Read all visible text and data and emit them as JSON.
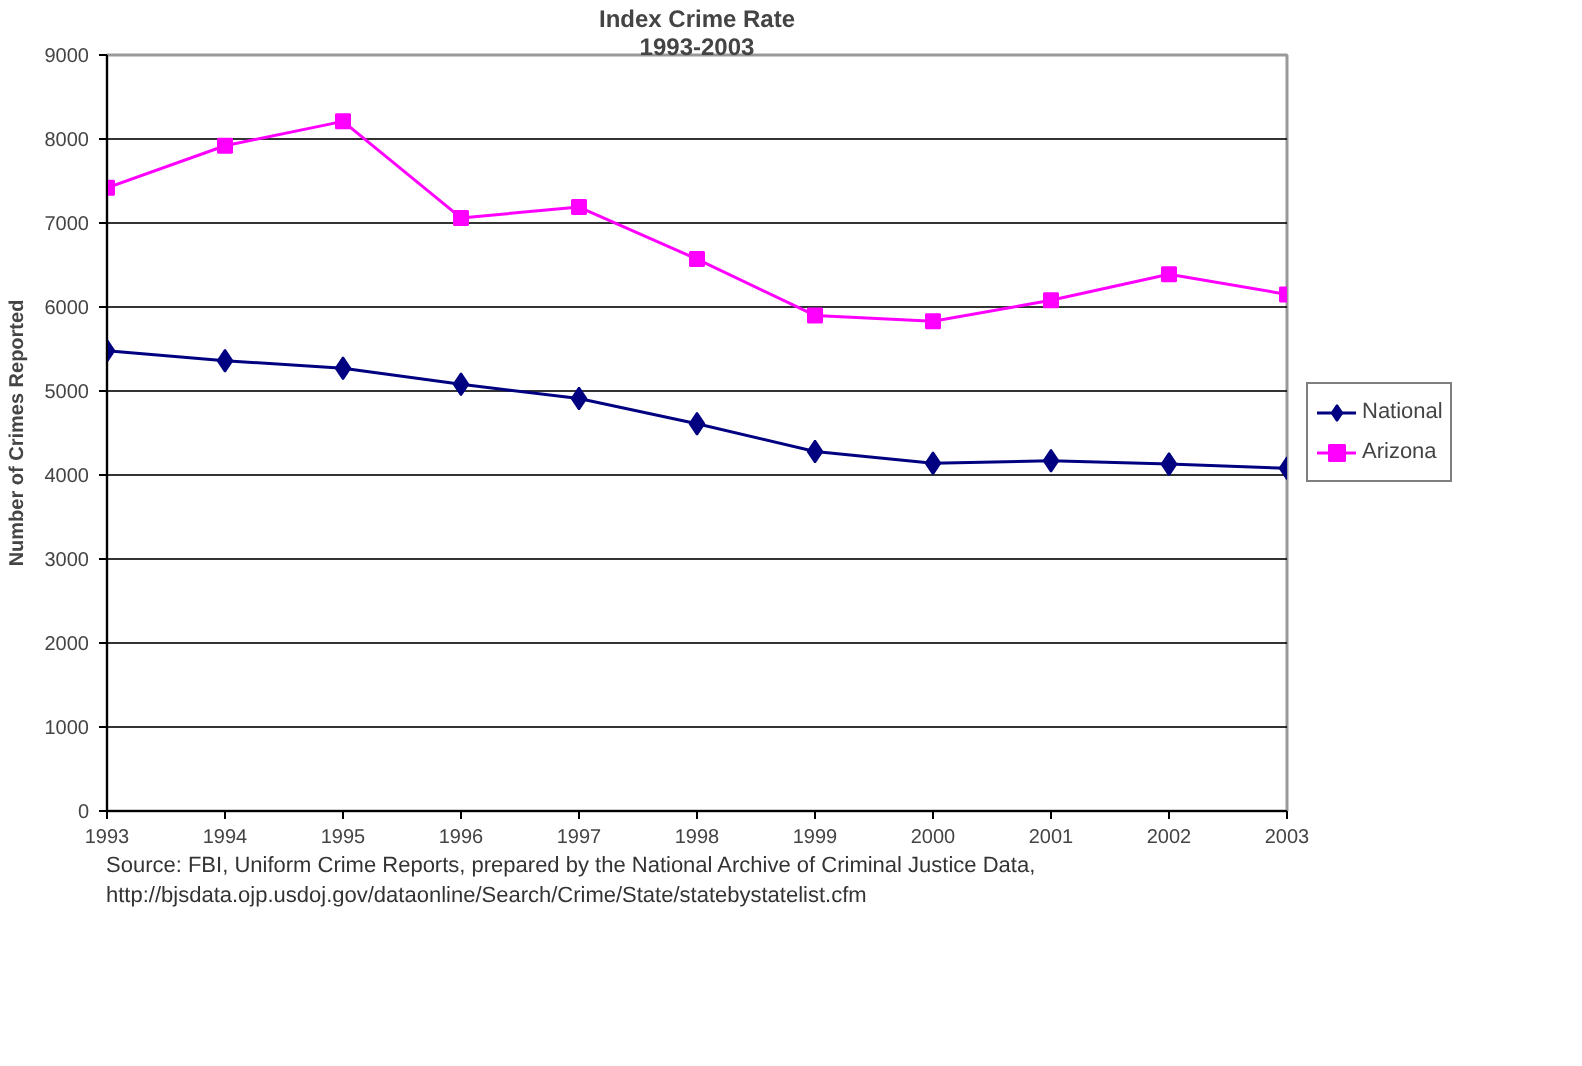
{
  "chart_data": {
    "type": "line",
    "title": "Index Crime Rate",
    "subtitle": "1993-2003",
    "ylabel": "Number of Crimes Reported",
    "x": [
      1993,
      1994,
      1995,
      1996,
      1997,
      1998,
      1999,
      2000,
      2001,
      2002,
      2003
    ],
    "series": [
      {
        "name": "National",
        "color": "#000080",
        "marker": "diamond",
        "values": [
          5480,
          5360,
          5270,
          5080,
          4910,
          4610,
          4280,
          4140,
          4170,
          4130,
          4080
        ]
      },
      {
        "name": "Arizona",
        "color": "#ff00ff",
        "marker": "square",
        "values": [
          7420,
          7920,
          8210,
          7060,
          7190,
          6570,
          5900,
          5830,
          6080,
          6390,
          6150
        ]
      }
    ],
    "xlim": [
      1993,
      2003
    ],
    "xticks": [
      1993,
      1994,
      1995,
      1996,
      1997,
      1998,
      1999,
      2000,
      2001,
      2002,
      2003
    ],
    "ylim": [
      0,
      9000
    ],
    "yticks": [
      0,
      1000,
      2000,
      3000,
      4000,
      5000,
      6000,
      7000,
      8000,
      9000
    ],
    "grid": "y",
    "legend": "right",
    "annotations": [
      "Source: FBI, Uniform Crime Reports, prepared by the National Archive of Criminal Justice Data,",
      "http://bjsdata.ojp.usdoj.gov/dataonline/Search/Crime/State/statebystatelist.cfm"
    ]
  }
}
